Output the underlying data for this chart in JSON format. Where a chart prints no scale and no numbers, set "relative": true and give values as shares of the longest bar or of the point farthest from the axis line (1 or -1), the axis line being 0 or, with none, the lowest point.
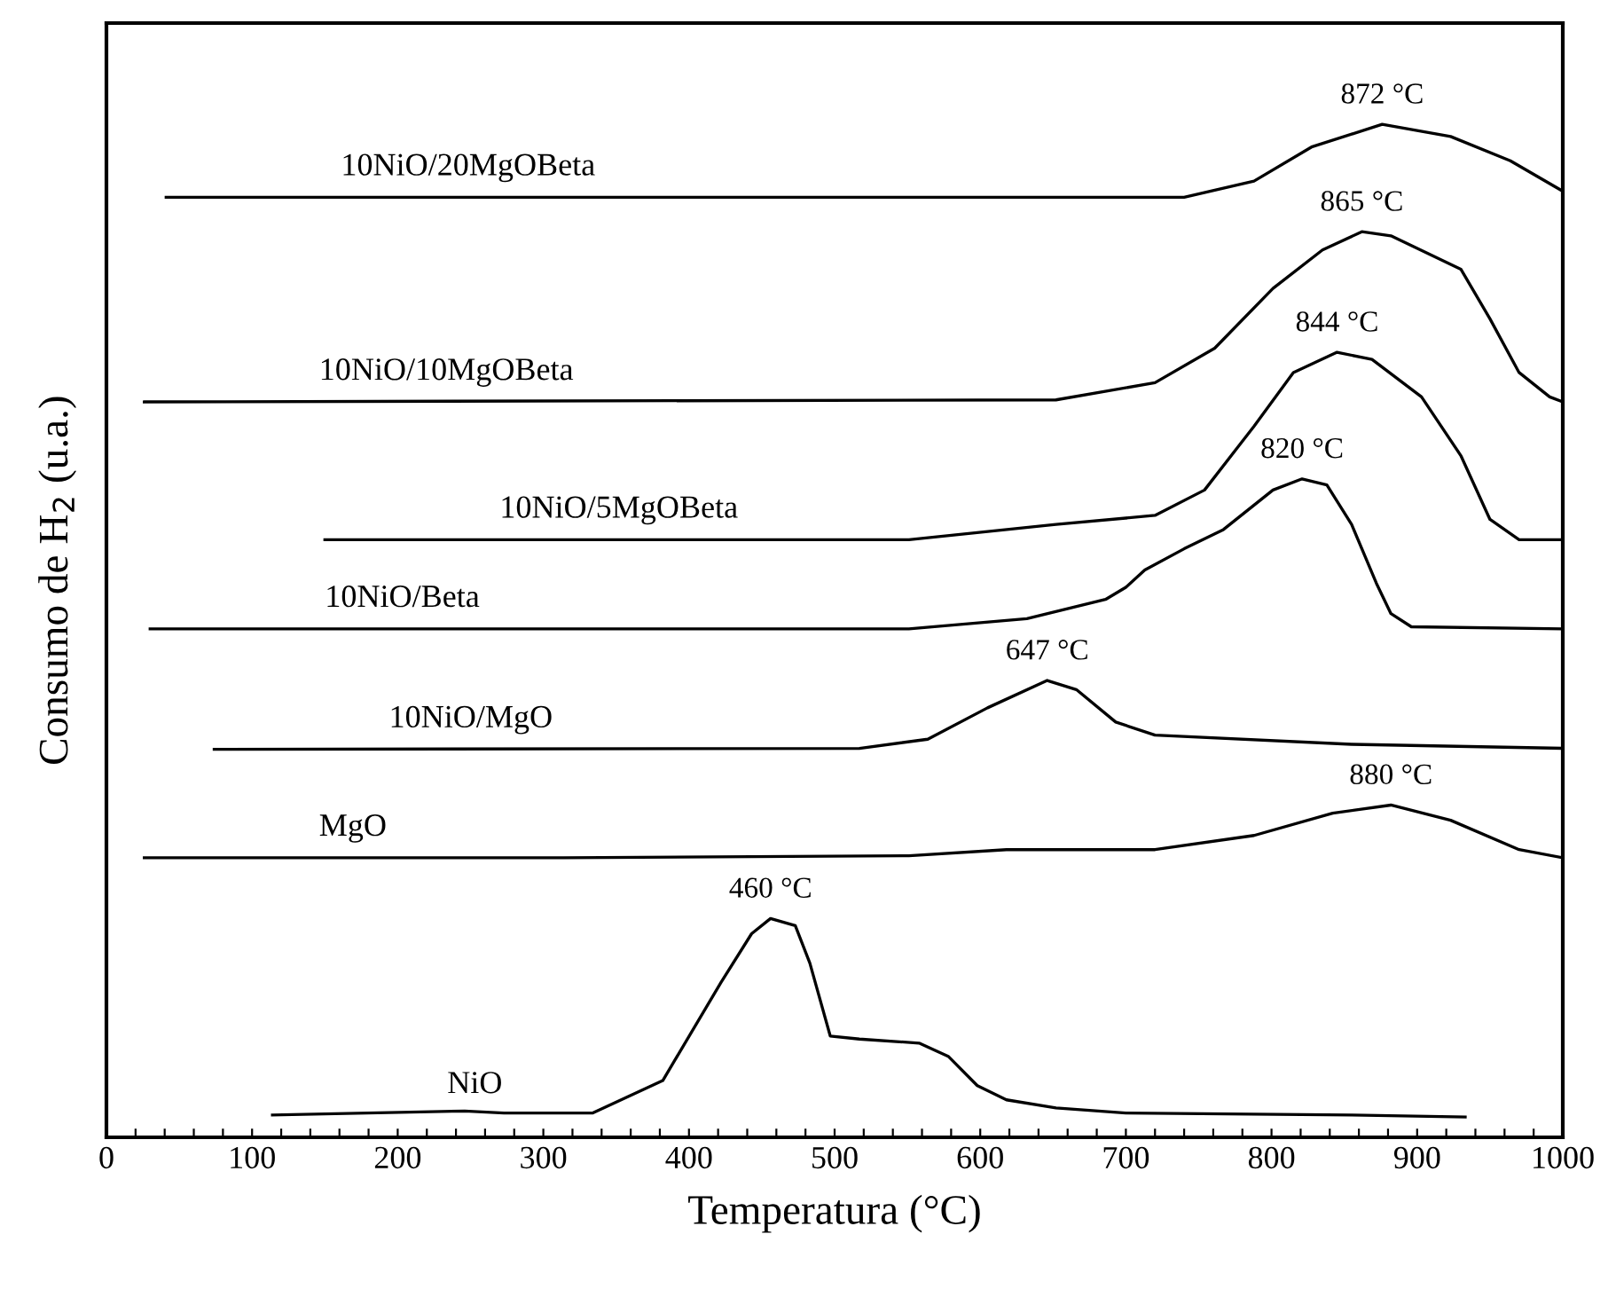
{
  "chart_data": {
    "type": "line",
    "relative": true,
    "xlabel": "Temperatura (°C)",
    "ylabel": "Consumo de H$_{2}$ (u.a.)",
    "xlim": [
      0,
      1000
    ],
    "xticks": [
      0,
      {
        "value": 20,
        "label": null
      },
      {
        "value": 40,
        "label": null
      },
      {
        "value": 60,
        "label": null
      },
      {
        "value": 80,
        "label": null
      },
      100,
      {
        "value": 120,
        "label": null
      },
      {
        "value": 140,
        "label": null
      },
      {
        "value": 160,
        "label": null
      },
      {
        "value": 180,
        "label": null
      },
      200,
      {
        "value": 220,
        "label": null
      },
      {
        "value": 240,
        "label": null
      },
      {
        "value": 260,
        "label": null
      },
      {
        "value": 280,
        "label": null
      },
      300,
      {
        "value": 320,
        "label": null
      },
      {
        "value": 340,
        "label": null
      },
      {
        "value": 360,
        "label": null
      },
      {
        "value": 380,
        "label": null
      },
      400,
      {
        "value": 420,
        "label": null
      },
      {
        "value": 440,
        "label": null
      },
      {
        "value": 460,
        "label": null
      },
      {
        "value": 480,
        "label": null
      },
      500,
      {
        "value": 520,
        "label": null
      },
      {
        "value": 540,
        "label": null
      },
      {
        "value": 560,
        "label": null
      },
      {
        "value": 580,
        "label": null
      },
      600,
      {
        "value": 620,
        "label": null
      },
      {
        "value": 640,
        "label": null
      },
      {
        "value": 660,
        "label": null
      },
      {
        "value": 680,
        "label": null
      },
      700,
      {
        "value": 720,
        "label": null
      },
      {
        "value": 740,
        "label": null
      },
      {
        "value": 760,
        "label": null
      },
      {
        "value": 780,
        "label": null
      },
      800,
      {
        "value": 820,
        "label": null
      },
      {
        "value": 840,
        "label": null
      },
      {
        "value": 860,
        "label": null
      },
      {
        "value": 880,
        "label": null
      },
      900,
      {
        "value": 920,
        "label": null
      },
      {
        "value": 940,
        "label": null
      },
      {
        "value": 960,
        "label": null
      },
      {
        "value": 980,
        "label": null
      },
      1000
    ],
    "grid": false,
    "legend": false,
    "marker": "none",
    "line_style": "solid",
    "series": [
      {
        "name": "10NiO/20MgOBeta",
        "color": "#000000",
        "x": [
          41,
          740,
          788,
          828,
          876,
          923,
          964,
          1000
        ],
        "values": [
          0.928,
          0.928,
          0.944,
          0.978,
          1.0,
          0.988,
          0.964,
          0.934
        ]
      },
      {
        "name": "10NiO/10MgOBeta",
        "color": "#000000",
        "x": [
          26,
          652,
          720,
          761,
          801,
          835,
          862,
          882,
          930,
          950,
          970,
          991,
          1000
        ],
        "values": [
          0.726,
          0.728,
          0.745,
          0.779,
          0.838,
          0.876,
          0.894,
          0.89,
          0.857,
          0.808,
          0.755,
          0.731,
          0.726
        ]
      },
      {
        "name": "10NiO/5MgOBeta",
        "color": "#000000",
        "x": [
          150,
          551,
          652,
          720,
          754,
          788,
          815,
          845,
          869,
          903,
          930,
          950,
          970,
          1000
        ],
        "values": [
          0.59,
          0.59,
          0.605,
          0.614,
          0.639,
          0.702,
          0.755,
          0.775,
          0.768,
          0.731,
          0.673,
          0.61,
          0.59,
          0.59
        ]
      },
      {
        "name": "10NiO/Beta",
        "color": "#000000",
        "x": [
          30,
          551,
          632,
          686,
          700,
          713,
          740,
          767,
          801,
          821,
          838,
          855,
          872,
          882,
          896,
          1000
        ],
        "values": [
          0.502,
          0.502,
          0.512,
          0.531,
          0.543,
          0.56,
          0.581,
          0.6,
          0.639,
          0.65,
          0.644,
          0.605,
          0.547,
          0.517,
          0.504,
          0.502
        ]
      },
      {
        "name": "10NiO/MgO",
        "color": "#000000",
        "x": [
          74,
          517,
          564,
          605,
          646,
          666,
          693,
          720,
          855,
          1000
        ],
        "values": [
          0.383,
          0.384,
          0.393,
          0.424,
          0.451,
          0.442,
          0.41,
          0.397,
          0.388,
          0.384
        ]
      },
      {
        "name": "MgO",
        "color": "#000000",
        "x": [
          26,
          314,
          551,
          618,
          720,
          788,
          842,
          882,
          923,
          970,
          1000
        ],
        "values": [
          0.276,
          0.276,
          0.278,
          0.284,
          0.284,
          0.298,
          0.32,
          0.328,
          0.313,
          0.284,
          0.276
        ]
      },
      {
        "name": "NiO",
        "color": "#000000",
        "x": [
          114,
          246,
          273,
          334,
          382,
          422,
          443,
          456,
          473,
          483,
          497,
          517,
          558,
          578,
          598,
          618,
          652,
          700,
          855,
          933
        ],
        "values": [
          0.022,
          0.026,
          0.024,
          0.024,
          0.056,
          0.153,
          0.201,
          0.216,
          0.209,
          0.172,
          0.1,
          0.097,
          0.093,
          0.08,
          0.051,
          0.037,
          0.029,
          0.024,
          0.022,
          0.02
        ]
      }
    ],
    "annotations": [
      {
        "text": "872 °C",
        "x": 876,
        "y": 1.0
      },
      {
        "text": "865 °C",
        "x": 862,
        "y": 0.894
      },
      {
        "text": "844 °C",
        "x": 845,
        "y": 0.775
      },
      {
        "text": "820 °C",
        "x": 821,
        "y": 0.65
      },
      {
        "text": "647 °C",
        "x": 646,
        "y": 0.451
      },
      {
        "text": "880 °C",
        "x": 882,
        "y": 0.328
      },
      {
        "text": "460 °C",
        "x": 456,
        "y": 0.216
      }
    ]
  }
}
